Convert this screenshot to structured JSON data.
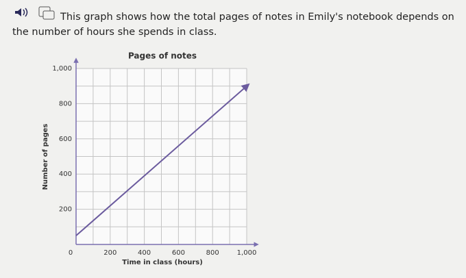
{
  "question": "This graph shows how the total pages of notes in Emily's notebook depends on the number of hours she spends in class.",
  "chart_data": {
    "type": "line",
    "title": "Pages of notes",
    "x_label": "Time in class (hours)",
    "y_label": "Number of pages",
    "x": [
      0,
      1000
    ],
    "values": [
      50,
      900
    ],
    "color": "#6b5b9e",
    "xlim": [
      0,
      1000
    ],
    "ylim": [
      0,
      1000
    ],
    "xticks": [
      0,
      200,
      400,
      600,
      800,
      {
        "value": 1000,
        "label": "1,000"
      }
    ],
    "yticks": [
      200,
      400,
      600,
      800,
      {
        "value": 1000,
        "label": "1,000"
      }
    ],
    "x_minor_grid": [
      100,
      300,
      500,
      700,
      900
    ],
    "y_minor_grid": [
      100,
      300,
      500,
      700,
      900
    ],
    "grid": true
  }
}
